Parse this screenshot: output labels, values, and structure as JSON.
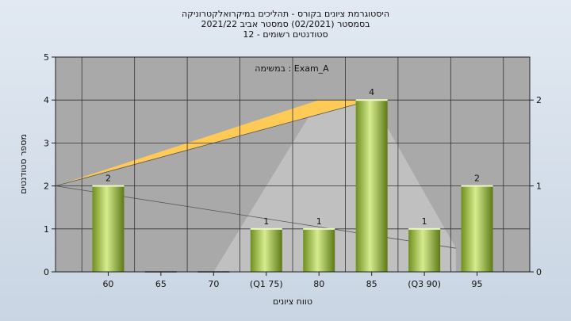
{
  "chart_data": {
    "type": "bar",
    "title_lines": [
      "היסטוגרמת ציונים בקורס - תהליכים במיקרואלקטרוניקה",
      "בסמסטר  (02/2021)  סמסטר אביב 2021/22",
      "סטודנטים רשומים - 12"
    ],
    "annotation": "במשימה : Exam_A",
    "xlabel": "טווח ציונים",
    "ylabel": "מספר סטודנטים",
    "categories": [
      "60",
      "65",
      "70",
      "(Q1 75)",
      "80",
      "85",
      "(Q3 90)",
      "95"
    ],
    "values": [
      2,
      0,
      0,
      1,
      1,
      4,
      1,
      2
    ],
    "ylim": [
      0,
      5
    ],
    "y_ticks": [
      0,
      1,
      2,
      3,
      4,
      5
    ],
    "y2_ticks": [
      0,
      1,
      2
    ],
    "y2lim": [
      0,
      2.5
    ],
    "grid": true,
    "bar_color": "#a4c842",
    "plot_bg": "#a9a9a9",
    "box_range": {
      "q1": 75,
      "median_from": 80,
      "median_to": 85,
      "q3": 90,
      "box_height": 4,
      "color": "#ffca56"
    },
    "spread_range": {
      "from": 70,
      "to": 95,
      "color": "#c2c2c2"
    }
  }
}
